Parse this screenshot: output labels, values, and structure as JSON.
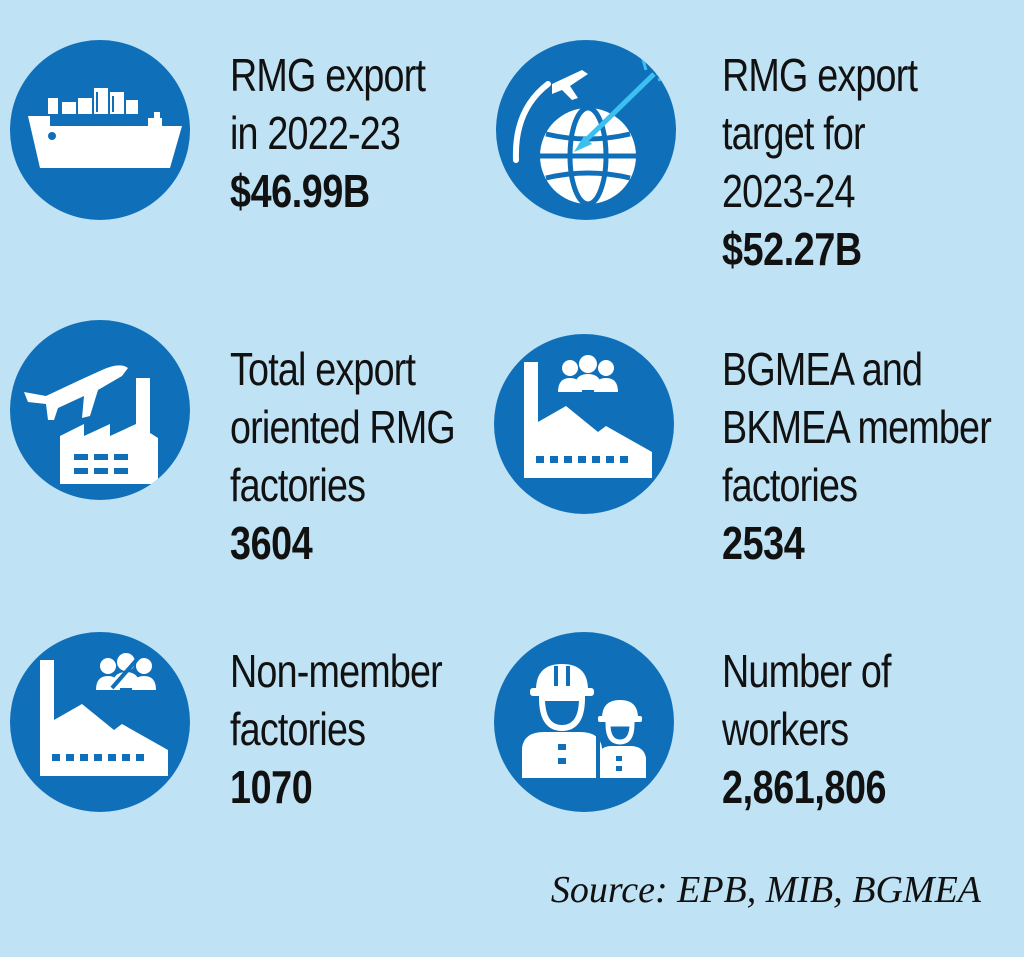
{
  "stats": [
    {
      "lines": [
        "RMG export",
        "in 2022-23"
      ],
      "value": "$46.99B",
      "icon": "cargo-ship-icon"
    },
    {
      "lines": [
        "RMG export",
        "target for",
        "2023-24"
      ],
      "value": "$52.27B",
      "icon": "globe-target-icon"
    },
    {
      "lines": [
        "Total export",
        "oriented RMG",
        "factories"
      ],
      "value": "3604",
      "icon": "factory-plane-icon"
    },
    {
      "lines": [
        "BGMEA and",
        "BKMEA member",
        "factories"
      ],
      "value": "2534",
      "icon": "factory-members-icon"
    },
    {
      "lines": [
        "Non-member",
        "factories"
      ],
      "value": "1070",
      "icon": "factory-non-members-icon"
    },
    {
      "lines": [
        "Number of",
        "workers"
      ],
      "value": "2,861,806",
      "icon": "workers-icon"
    }
  ],
  "source": "Source: EPB, MIB, BGMEA",
  "colors": {
    "background": "#bfe2f4",
    "circle": "#0f6fb8",
    "icon": "#ffffff",
    "arrow_accent": "#3cc0f0"
  }
}
